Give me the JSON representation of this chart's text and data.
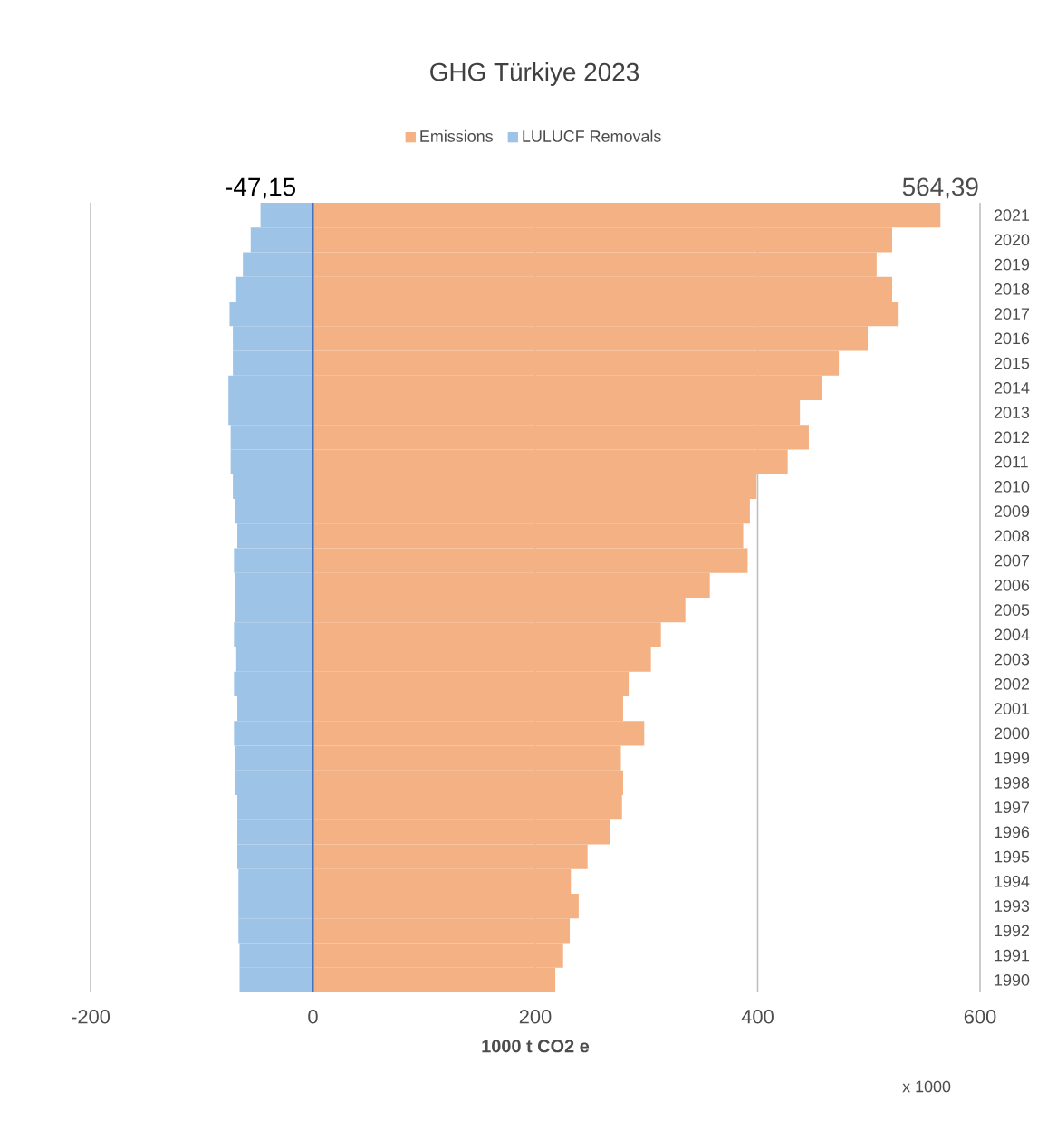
{
  "chart_data": {
    "type": "bar",
    "orientation": "horizontal",
    "stacked": true,
    "title": "GHG Türkiye 2023",
    "xlabel": "1000 t CO2 e",
    "annotations": [
      "x 1000"
    ],
    "categories": [
      "2021",
      "2020",
      "2019",
      "2018",
      "2017",
      "2016",
      "2015",
      "2014",
      "2013",
      "2012",
      "2011",
      "2010",
      "2009",
      "2008",
      "2007",
      "2006",
      "2005",
      "2004",
      "2003",
      "2002",
      "2001",
      "2000",
      "1999",
      "1998",
      "1997",
      "1996",
      "1995",
      "1994",
      "1993",
      "1992",
      "1991",
      "1990"
    ],
    "series": [
      {
        "name": "Emissions",
        "color": "#f4b183",
        "values": [
          564.39,
          521,
          507,
          521,
          526,
          499,
          473,
          458,
          438,
          446,
          427,
          399,
          393,
          387,
          391,
          357,
          335,
          313,
          304,
          284,
          279,
          298,
          277,
          279,
          278,
          267,
          247,
          232,
          239,
          231,
          225,
          218
        ],
        "value_labels": [
          "564,39",
          null,
          null,
          null,
          null,
          null,
          null,
          null,
          null,
          null,
          null,
          null,
          null,
          null,
          null,
          null,
          null,
          null,
          null,
          null,
          null,
          null,
          null,
          null,
          null,
          null,
          null,
          null,
          null,
          null,
          null,
          null
        ]
      },
      {
        "name": "LULUCF Removals",
        "color": "#9dc3e6",
        "values": [
          -47.15,
          -56,
          -63,
          -69,
          -75,
          -72,
          -72,
          -76,
          -76,
          -74,
          -74,
          -72,
          -70,
          -68,
          -71,
          -70,
          -70,
          -71,
          -69,
          -71,
          -68,
          -71,
          -70,
          -70,
          -68,
          -68,
          -68,
          -67,
          -67,
          -67,
          -66,
          -66
        ],
        "value_labels": [
          "-47,15",
          null,
          null,
          null,
          null,
          null,
          null,
          null,
          null,
          null,
          null,
          null,
          null,
          null,
          null,
          null,
          null,
          null,
          null,
          null,
          null,
          null,
          null,
          null,
          null,
          null,
          null,
          null,
          null,
          null,
          null,
          null
        ]
      }
    ],
    "xlim": [
      -200,
      600
    ],
    "xticks": [
      -200,
      0,
      200,
      400,
      600
    ],
    "grid": "x",
    "legend": "top",
    "ref_lines": [
      {
        "axis": "x",
        "value": 0,
        "color": "#4472c4"
      }
    ]
  }
}
